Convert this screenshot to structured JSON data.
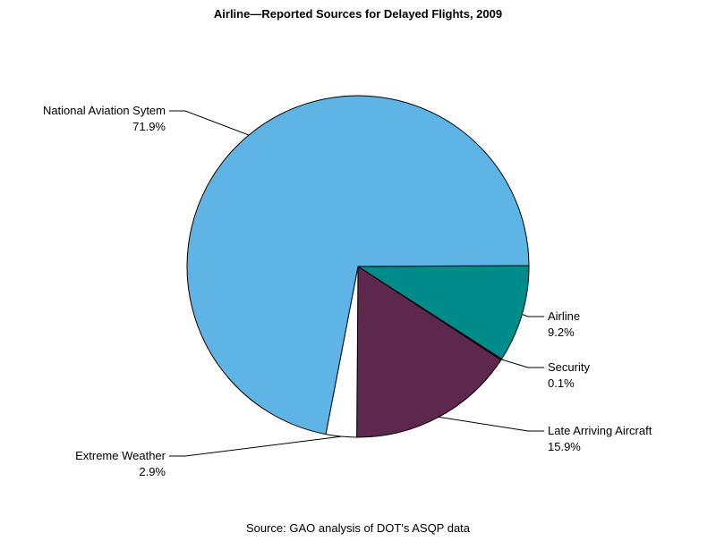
{
  "chart_data": {
    "type": "pie",
    "title": "Airline—Reported Sources for Delayed Flights, 2009",
    "source_note": "Source: GAO analysis of DOT's ASQP data",
    "slices": [
      {
        "label": "Airline",
        "value": 9.2,
        "value_label": "9.2%",
        "color": "#008B8B"
      },
      {
        "label": "Security",
        "value": 0.1,
        "value_label": "0.1%",
        "color": "#3F3F7F"
      },
      {
        "label": "Late Arriving Aircraft",
        "value": 15.9,
        "value_label": "15.9%",
        "color": "#5E274D"
      },
      {
        "label": "Extreme Weather",
        "value": 2.9,
        "value_label": "2.9%",
        "color": "#FFFFFF"
      },
      {
        "label": "National Aviation Sytem",
        "value": 71.9,
        "value_label": "71.9%",
        "color": "#5EB4E4"
      }
    ]
  }
}
